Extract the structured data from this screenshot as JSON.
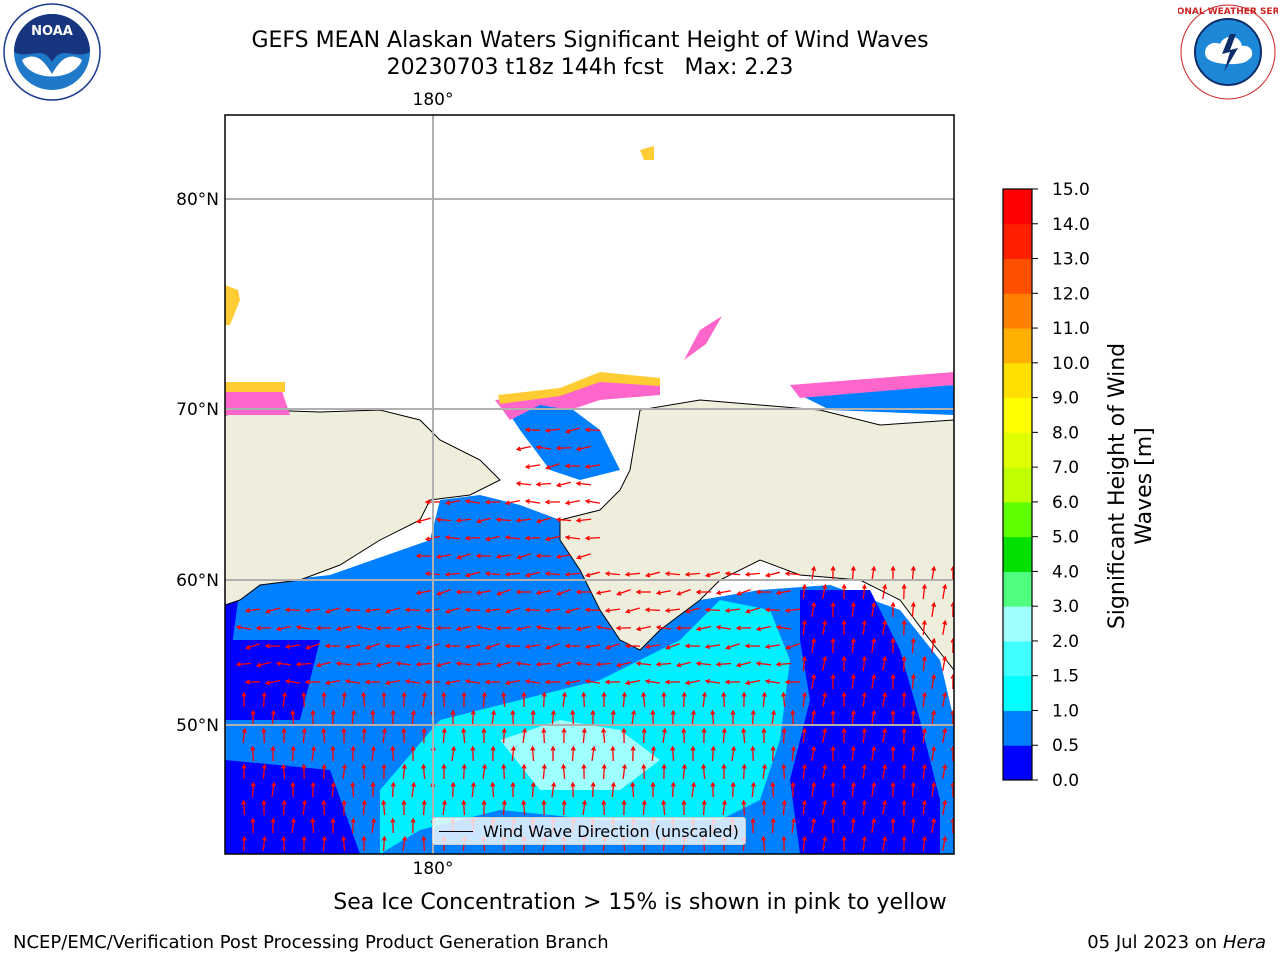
{
  "title": {
    "line1": "GEFS MEAN Alaskan Waters Significant Height of Wind Waves",
    "line2": "20230703 t18z 144h fcst   Max: 2.23"
  },
  "logos": {
    "left": {
      "name": "NOAA",
      "ring_text": "NATIONAL OCEANIC AND ATMOSPHERIC ADMINISTRATION • U.S. DEPARTMENT OF COMMERCE"
    },
    "right": {
      "name": "NATIONAL WEATHER SERVICE"
    }
  },
  "map": {
    "top_lon_label": "180°",
    "bottom_lon_label": "180°",
    "lat_labels": [
      "80°N",
      "70°N",
      "60°N",
      "50°N"
    ],
    "colors": {
      "land": "#efeedd",
      "ocean_dark": "#0000ff",
      "ocean_mid": "#0080ff",
      "ocean_light": "#00e5ff",
      "ocean_pale": "#a8ffff",
      "arrow": "#ff0000",
      "ice_pink": "#ff66cc",
      "ice_yellow": "#ffcc33",
      "grid": "#b0b0b0"
    },
    "legend_text": "Wind Wave Direction (unscaled)"
  },
  "colorbar": {
    "label_line1": "Significant Height of Wind",
    "label_line2": "Waves [m]",
    "ticks": [
      "0.0",
      "0.5",
      "1.0",
      "1.5",
      "2.0",
      "3.0",
      "4.0",
      "5.0",
      "6.0",
      "7.0",
      "8.0",
      "9.0",
      "10.0",
      "11.0",
      "12.0",
      "13.0",
      "14.0",
      "15.0"
    ],
    "colors": [
      "#0000ff",
      "#0080ff",
      "#00ffff",
      "#40ffff",
      "#a0ffff",
      "#50ff80",
      "#00e000",
      "#60ff00",
      "#c0ff00",
      "#e0ff00",
      "#ffff00",
      "#ffe000",
      "#ffb000",
      "#ff8000",
      "#ff5000",
      "#ff2000",
      "#ff0000"
    ]
  },
  "note": "Sea Ice Concentration > 15% is shown in pink to yellow",
  "footer": {
    "left": "NCEP/EMC/Verification Post Processing Product Generation Branch",
    "date": "05 Jul 2023 on ",
    "machine": "Hera"
  }
}
